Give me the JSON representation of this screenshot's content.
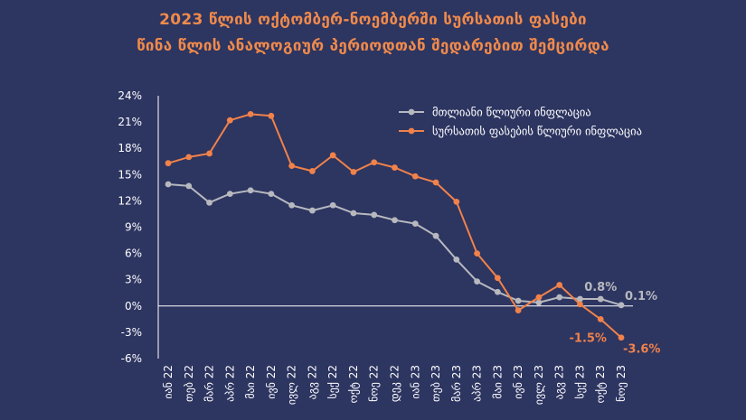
{
  "header": {
    "title_line1": "2023 წლის ოქტომბერ-ნოემბერში სურსათის ფასები",
    "title_line2": "წინა წლის ანალოგიურ პერიოდთან შედარებით შემცირდა"
  },
  "colors": {
    "background": "#2d3561",
    "total": "#b7b9bf",
    "food": "#f0824a",
    "title": "#f08a4b",
    "text": "#ffffff"
  },
  "chart_data": {
    "type": "line",
    "x": [
      "იან 22",
      "თებ 22",
      "მარ 22",
      "აპრ 22",
      "მაი 22",
      "ივნ 22",
      "ივლ 22",
      "აგვ 22",
      "სექ 22",
      "ოქტ 22",
      "ნოე 22",
      "დეკ 22",
      "იან 23",
      "თებ 23",
      "მარ 23",
      "აპრ 23",
      "მაი 23",
      "ივნ 23",
      "ივლ 23",
      "აგვ 23",
      "სექ 23",
      "ოქტ 23",
      "ნოე 23"
    ],
    "ylim": [
      -6,
      24
    ],
    "yticks": [
      "-6%",
      "-3%",
      "0%",
      "3%",
      "6%",
      "9%",
      "12%",
      "15%",
      "18%",
      "21%",
      "24%"
    ],
    "ytick_values": [
      -6,
      -3,
      0,
      3,
      6,
      9,
      12,
      15,
      18,
      21,
      24
    ],
    "legend_position": "top-right",
    "series": [
      {
        "name": "მთლიანი წლიური ინფლაცია",
        "color": "#b7b9bf",
        "values": [
          13.9,
          13.7,
          11.8,
          12.8,
          13.2,
          12.8,
          11.5,
          10.9,
          11.5,
          10.6,
          10.4,
          9.8,
          9.4,
          8.0,
          5.3,
          2.8,
          1.6,
          0.6,
          0.4,
          1.0,
          0.8,
          0.8,
          0.1
        ]
      },
      {
        "name": "სურსათის ფასების წლიური ინფლაცია",
        "color": "#f0824a",
        "values": [
          16.3,
          17.0,
          17.4,
          21.2,
          21.9,
          21.7,
          16.0,
          15.4,
          17.2,
          15.3,
          16.4,
          15.8,
          14.8,
          14.1,
          11.9,
          6.0,
          3.2,
          -0.5,
          1.0,
          2.4,
          0.2,
          -1.5,
          -3.6
        ]
      }
    ],
    "annotations": [
      {
        "series": 0,
        "index": 21,
        "text": "0.8%"
      },
      {
        "series": 0,
        "index": 22,
        "text": "0.1%"
      },
      {
        "series": 1,
        "index": 21,
        "text": "-1.5%"
      },
      {
        "series": 1,
        "index": 22,
        "text": "-3.6%"
      }
    ]
  }
}
